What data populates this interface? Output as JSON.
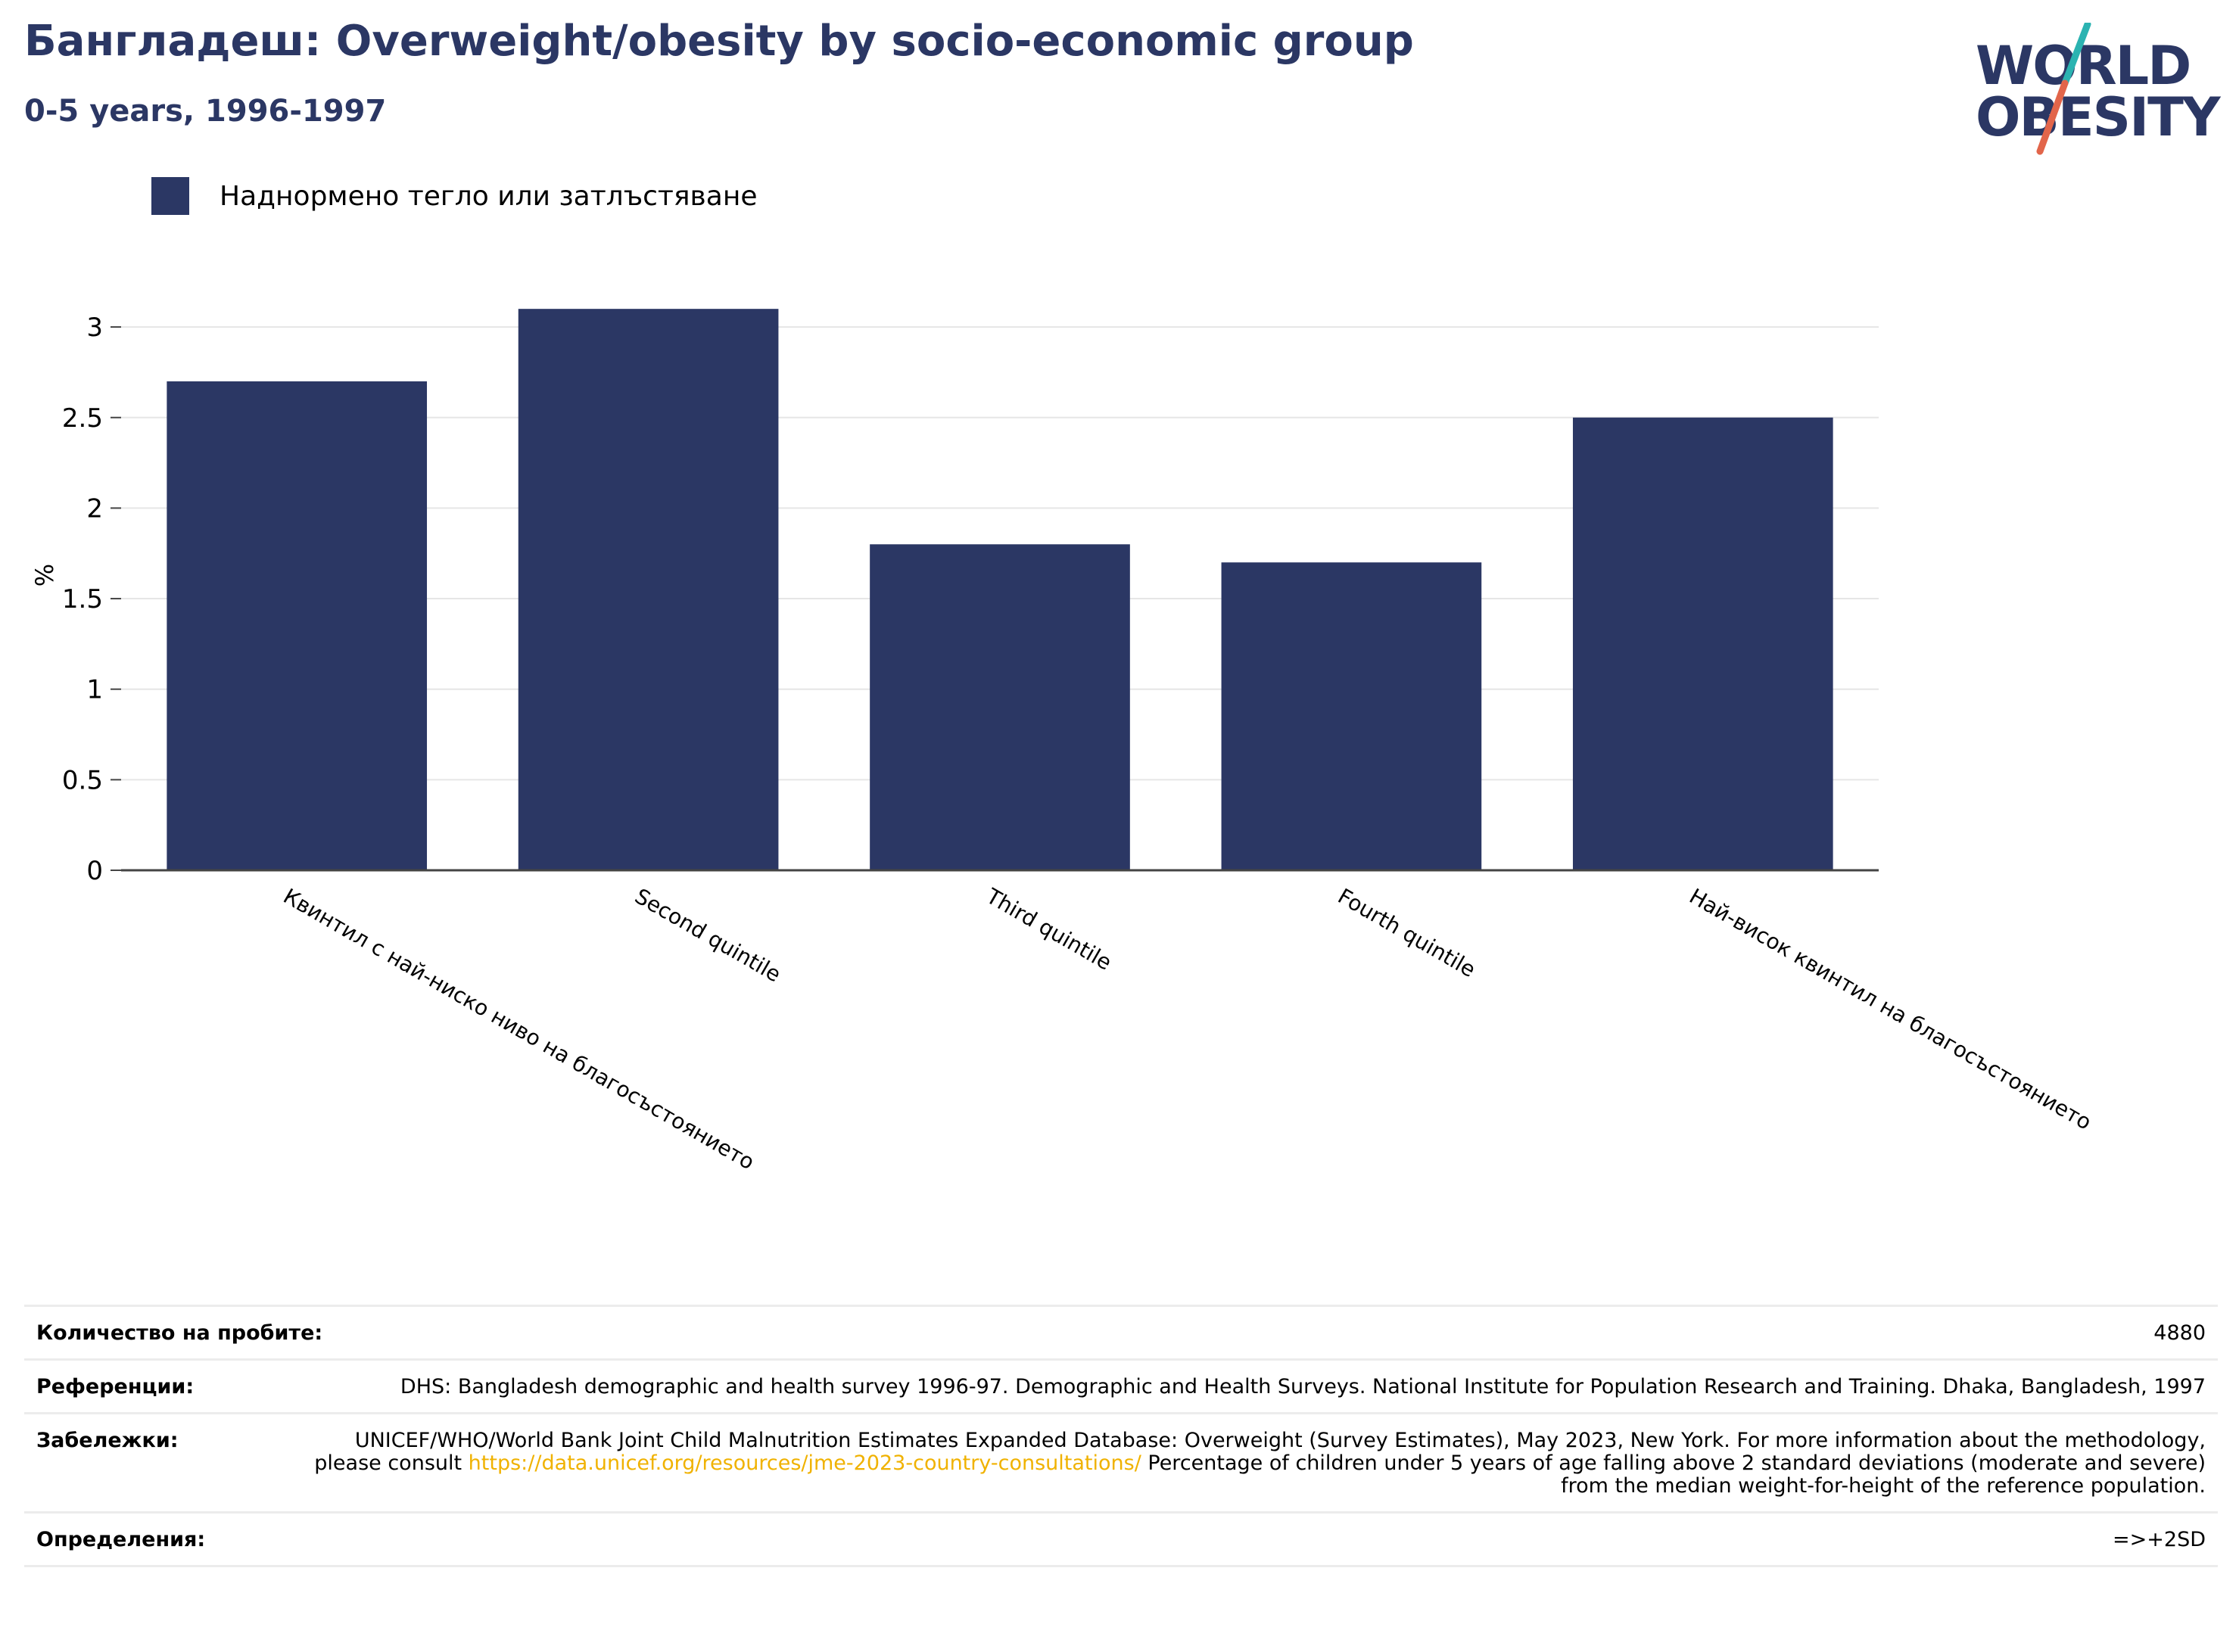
{
  "header": {
    "title": "Бангладеш: Overweight/obesity by socio-economic group",
    "subtitle": "0-5 years, 1996-1997"
  },
  "logo": {
    "line1": "WORLD",
    "line2": "OBESITY",
    "colors": {
      "text": "#2b3764",
      "slash_top": "#2bb3b1",
      "slash_bottom": "#e2654a"
    }
  },
  "legend": {
    "label": "Наднормено тегло или затлъстяване",
    "color": "#2b3764"
  },
  "chart_data": {
    "type": "bar",
    "categories": [
      "Квинтил с най-ниско ниво на благосъстоянието",
      "Second quintile",
      "Third quintile",
      "Fourth quintile",
      "Най-висок квинтил на благосъстоянието"
    ],
    "series": [
      {
        "name": "Наднормено тегло или затлъстяване",
        "values": [
          2.7,
          3.1,
          1.8,
          1.7,
          2.5
        ]
      }
    ],
    "ylabel": "%",
    "ylim": [
      0,
      3.3
    ],
    "yticks": [
      0,
      0.5,
      1,
      1.5,
      2,
      2.5,
      3
    ],
    "ytick_labels": [
      "0",
      "0.5",
      "1",
      "1.5",
      "2",
      "2.5",
      "3"
    ],
    "grid": true,
    "bar_color": "#2b3764",
    "x_tick_rotation_deg": 30
  },
  "footer": {
    "rows": [
      {
        "key": "Количество на пробите:",
        "value": "4880"
      },
      {
        "key": "Референции:",
        "value": "DHS: Bangladesh demographic and health survey 1996-97. Demographic and Health Surveys. National Institute for Population Research and Training. Dhaka, Bangladesh, 1997"
      },
      {
        "key": "Забележки:",
        "value_before": "UNICEF/WHO/World Bank Joint Child Malnutrition Estimates Expanded Database: Overweight (Survey Estimates), May 2023, New York. For more information about the methodology, please consult ",
        "link": "https://data.unicef.org/resources/jme-2023-country-consultations/",
        "value_after": " Percentage of children under 5 years of age falling above 2 standard deviations (moderate and severe) from the median weight-for-height of the reference population."
      },
      {
        "key": "Определения:",
        "value": "=>+2SD"
      }
    ]
  }
}
